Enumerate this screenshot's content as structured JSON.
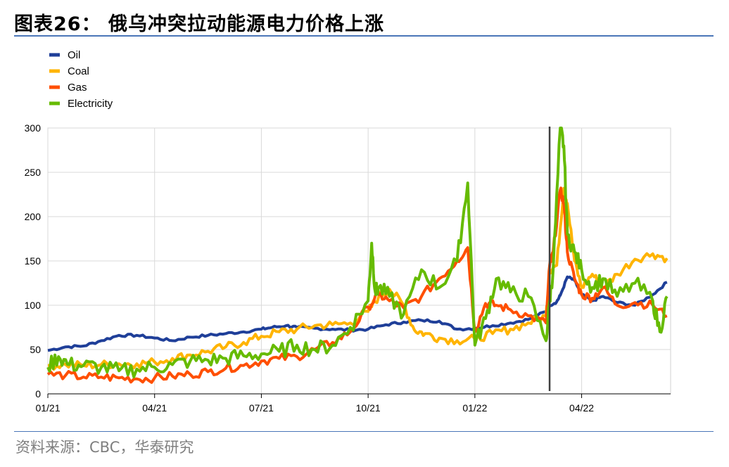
{
  "title": "图表26： 俄乌冲突拉动能源电力价格上涨",
  "source": "资料来源：CBC，华泰研究",
  "chart_data": {
    "type": "line",
    "grid": true,
    "legend_position": "top-left",
    "ylim": [
      0,
      300
    ],
    "yticks": [
      0,
      50,
      100,
      150,
      200,
      250,
      300
    ],
    "x_tick_labels": [
      "01/21",
      "04/21",
      "07/21",
      "10/21",
      "01/22",
      "04/22"
    ],
    "x_tick_positions": [
      0,
      3,
      6,
      9,
      12,
      15
    ],
    "xlim": [
      0,
      17.5
    ],
    "vline": 14.1,
    "series": [
      {
        "name": "Oil",
        "color": "#1f3f99",
        "x": [
          0,
          0.5,
          1,
          1.5,
          2,
          2.5,
          3,
          3.5,
          4,
          4.5,
          5,
          5.5,
          6,
          6.3,
          6.7,
          7,
          7.5,
          8,
          8.5,
          9,
          9.5,
          10,
          10.5,
          11,
          11.5,
          12,
          12.5,
          13,
          13.5,
          14,
          14.1,
          14.3,
          14.4,
          14.6,
          14.8,
          15,
          15.3,
          15.6,
          16,
          16.5,
          17,
          17.4
        ],
        "y": [
          49,
          53,
          54,
          60,
          66,
          66,
          63,
          60,
          64,
          66,
          68,
          70,
          73,
          75,
          77,
          75,
          74,
          73,
          72,
          73,
          78,
          81,
          83,
          82,
          73,
          74,
          77,
          80,
          84,
          93,
          100,
          104,
          111,
          132,
          128,
          112,
          105,
          110,
          103,
          100,
          112,
          126
        ]
      },
      {
        "name": "Coal",
        "color": "#ffb400",
        "x": [
          0,
          0.5,
          1,
          1.5,
          2,
          2.5,
          3,
          3.5,
          4,
          4.5,
          5,
          5.5,
          6,
          6.5,
          7,
          7.5,
          8,
          8.5,
          9,
          9.3,
          9.6,
          10,
          10.3,
          10.6,
          11,
          11.5,
          12,
          12.5,
          13,
          13.5,
          14,
          14.1,
          14.3,
          14.5,
          14.6,
          14.8,
          15,
          15.3,
          15.6,
          16,
          16.5,
          17,
          17.4
        ],
        "y": [
          32,
          33,
          32,
          33,
          34,
          34,
          36,
          40,
          44,
          48,
          53,
          58,
          65,
          70,
          73,
          77,
          78,
          80,
          93,
          110,
          118,
          100,
          72,
          68,
          63,
          60,
          62,
          68,
          73,
          80,
          88,
          140,
          145,
          232,
          215,
          150,
          120,
          135,
          120,
          135,
          152,
          158,
          153
        ]
      },
      {
        "name": "Gas",
        "color": "#ff4f00",
        "x": [
          0,
          0.5,
          1,
          1.5,
          2,
          2.5,
          3,
          3.5,
          4,
          4.5,
          5,
          5.5,
          6,
          6.5,
          7,
          7.5,
          8,
          8.5,
          9,
          9.3,
          9.6,
          10,
          10.5,
          11,
          11.5,
          11.8,
          12,
          12.3,
          12.6,
          13,
          13.5,
          14,
          14.1,
          14.2,
          14.4,
          14.5,
          14.6,
          14.8,
          15,
          15.3,
          15.6,
          16,
          16.5,
          17,
          17.4
        ],
        "y": [
          22,
          21,
          19,
          19,
          18,
          17,
          18,
          20,
          22,
          25,
          29,
          32,
          37,
          40,
          42,
          50,
          58,
          70,
          98,
          112,
          105,
          97,
          110,
          130,
          150,
          165,
          70,
          102,
          100,
          95,
          88,
          80,
          145,
          160,
          230,
          215,
          160,
          130,
          112,
          108,
          120,
          100,
          103,
          100,
          88
        ]
      },
      {
        "name": "Electricity",
        "color": "#66bb00",
        "x": [
          0,
          0.3,
          0.6,
          1,
          1.5,
          2,
          2.5,
          3,
          3.5,
          4,
          4.5,
          5,
          5.5,
          6,
          6.5,
          7,
          7.5,
          8,
          8.5,
          9,
          9.1,
          9.2,
          9.3,
          9.6,
          10,
          10.5,
          11,
          11.5,
          11.8,
          12,
          12.3,
          12.6,
          13,
          13.5,
          14,
          14.1,
          14.2,
          14.4,
          14.5,
          14.6,
          14.8,
          15,
          15.3,
          15.6,
          16,
          16.5,
          17,
          17.2,
          17.4
        ],
        "y": [
          30,
          42,
          33,
          32,
          30,
          26,
          28,
          30,
          33,
          37,
          38,
          40,
          43,
          45,
          48,
          55,
          50,
          55,
          75,
          105,
          170,
          115,
          120,
          110,
          90,
          140,
          120,
          150,
          238,
          55,
          85,
          130,
          115,
          110,
          60,
          105,
          140,
          300,
          280,
          180,
          160,
          140,
          120,
          130,
          110,
          125,
          105,
          70,
          110
        ]
      }
    ]
  }
}
